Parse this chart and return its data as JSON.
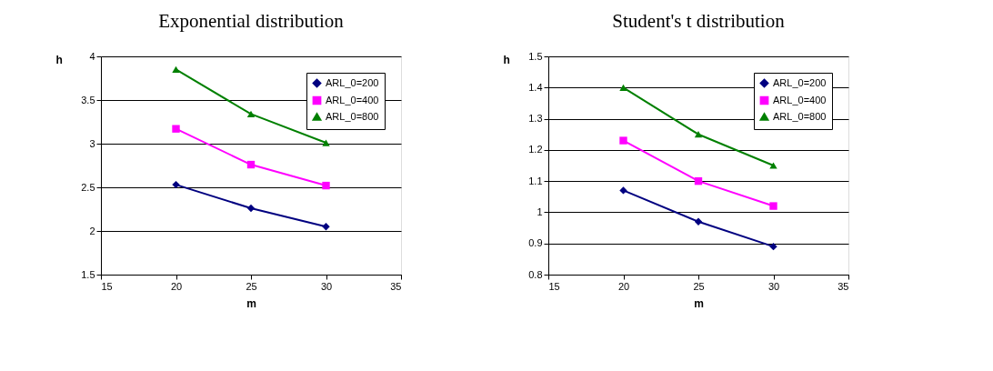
{
  "chart_data": [
    {
      "type": "line",
      "title": "Exponential distribution",
      "xlabel": "m",
      "ylabel": "h",
      "x": [
        20,
        25,
        30
      ],
      "series": [
        {
          "name": "ARL_0=200",
          "color": "#000080",
          "marker": "diamond",
          "values": [
            2.53,
            2.26,
            2.05
          ]
        },
        {
          "name": "ARL_0=400",
          "color": "#ff00ff",
          "marker": "square",
          "values": [
            3.17,
            2.76,
            2.52
          ]
        },
        {
          "name": "ARL_0=800",
          "color": "#008000",
          "marker": "triangle",
          "values": [
            3.85,
            3.34,
            3.01
          ]
        }
      ],
      "xlim": [
        15,
        35
      ],
      "xticks": [
        15,
        20,
        25,
        30,
        35
      ],
      "ylim": [
        1.5,
        4
      ],
      "yticks": [
        1.5,
        2,
        2.5,
        3,
        3.5,
        4
      ],
      "grid": "y",
      "legend": "top right",
      "line_style": "solid"
    },
    {
      "type": "line",
      "title": "Student's t distribution",
      "xlabel": "m",
      "ylabel": "h",
      "x": [
        20,
        25,
        30
      ],
      "series": [
        {
          "name": "ARL_0=200",
          "color": "#000080",
          "marker": "diamond",
          "values": [
            1.07,
            0.97,
            0.89
          ]
        },
        {
          "name": "ARL_0=400",
          "color": "#ff00ff",
          "marker": "square",
          "values": [
            1.23,
            1.1,
            1.02
          ]
        },
        {
          "name": "ARL_0=800",
          "color": "#008000",
          "marker": "triangle",
          "values": [
            1.4,
            1.25,
            1.15
          ]
        }
      ],
      "xlim": [
        15,
        35
      ],
      "xticks": [
        15,
        20,
        25,
        30,
        35
      ],
      "ylim": [
        0.8,
        1.5
      ],
      "yticks": [
        0.8,
        0.9,
        1,
        1.1,
        1.2,
        1.3,
        1.4,
        1.5
      ],
      "grid": "y",
      "legend": "top right",
      "line_style": "solid"
    }
  ]
}
